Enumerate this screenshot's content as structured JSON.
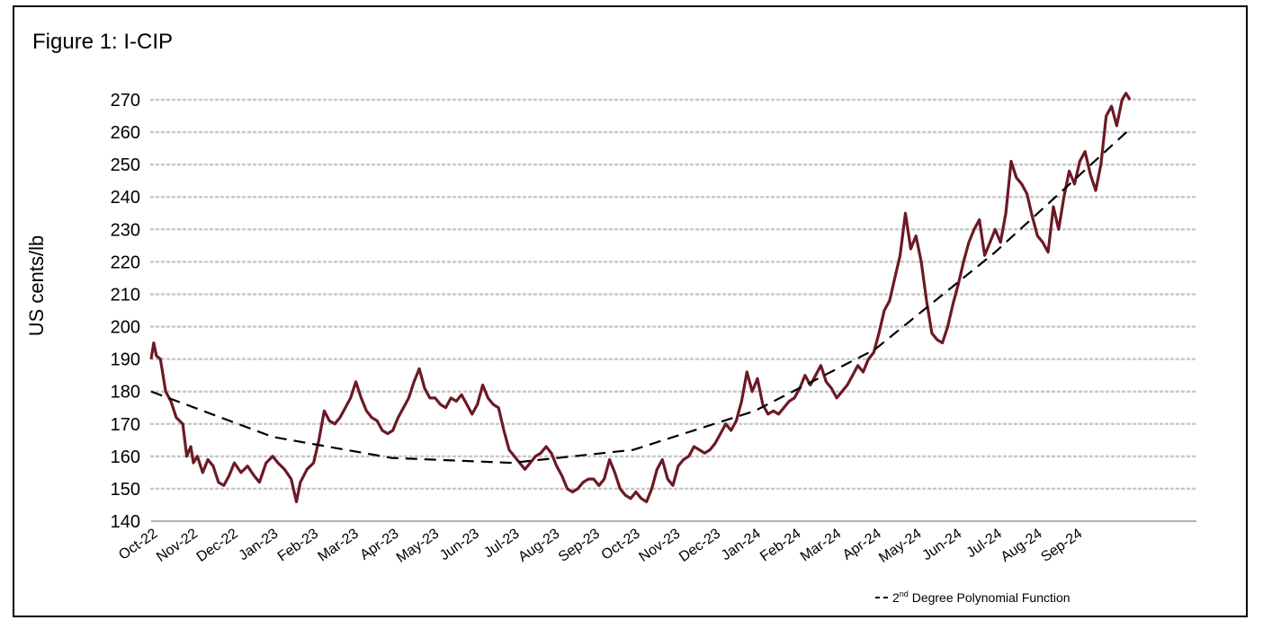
{
  "chart_data": {
    "type": "line",
    "title": "Figure 1: I-CIP",
    "xlabel": "",
    "ylabel": "US cents/lb",
    "ylim": [
      140,
      270
    ],
    "yticks": [
      140,
      150,
      160,
      170,
      180,
      190,
      200,
      210,
      220,
      230,
      240,
      250,
      260,
      270
    ],
    "grid": "horizontal dotted",
    "categories": [
      "Oct-22",
      "Nov-22",
      "Dec-22",
      "Jan-23",
      "Feb-23",
      "Mar-23",
      "Apr-23",
      "May-23",
      "Jun-23",
      "Jul-23",
      "Aug-23",
      "Sep-23",
      "Oct-23",
      "Nov-23",
      "Dec-23",
      "Jan-24",
      "Feb-24",
      "Mar-24",
      "Apr-24",
      "May-24",
      "Jun-24",
      "Jul-24",
      "Aug-24",
      "Sep-24"
    ],
    "series": [
      {
        "name": "",
        "color": "#6b1a25",
        "style": "solid",
        "points": [
          [
            "2022-10-01",
            190
          ],
          [
            "2022-10-03",
            195
          ],
          [
            "2022-10-05",
            191
          ],
          [
            "2022-10-08",
            190
          ],
          [
            "2022-10-12",
            180
          ],
          [
            "2022-10-16",
            177
          ],
          [
            "2022-10-20",
            172
          ],
          [
            "2022-10-25",
            170
          ],
          [
            "2022-10-28",
            160
          ],
          [
            "2022-10-31",
            163
          ],
          [
            "2022-11-02",
            158
          ],
          [
            "2022-11-05",
            160
          ],
          [
            "2022-11-09",
            155
          ],
          [
            "2022-11-13",
            159
          ],
          [
            "2022-11-17",
            157
          ],
          [
            "2022-11-21",
            152
          ],
          [
            "2022-11-25",
            151
          ],
          [
            "2022-11-29",
            154
          ],
          [
            "2022-12-03",
            158
          ],
          [
            "2022-12-08",
            155
          ],
          [
            "2022-12-13",
            157
          ],
          [
            "2022-12-18",
            154
          ],
          [
            "2022-12-22",
            152
          ],
          [
            "2022-12-27",
            158
          ],
          [
            "2023-01-01",
            160
          ],
          [
            "2023-01-05",
            158
          ],
          [
            "2023-01-10",
            156
          ],
          [
            "2023-01-15",
            153
          ],
          [
            "2023-01-19",
            146
          ],
          [
            "2023-01-22",
            152
          ],
          [
            "2023-01-27",
            156
          ],
          [
            "2023-02-01",
            158
          ],
          [
            "2023-02-05",
            165
          ],
          [
            "2023-02-09",
            174
          ],
          [
            "2023-02-13",
            171
          ],
          [
            "2023-02-17",
            170
          ],
          [
            "2023-02-21",
            172
          ],
          [
            "2023-02-25",
            175
          ],
          [
            "2023-03-01",
            178
          ],
          [
            "2023-03-05",
            183
          ],
          [
            "2023-03-09",
            178
          ],
          [
            "2023-03-13",
            174
          ],
          [
            "2023-03-17",
            172
          ],
          [
            "2023-03-21",
            171
          ],
          [
            "2023-03-25",
            168
          ],
          [
            "2023-03-29",
            167
          ],
          [
            "2023-04-02",
            168
          ],
          [
            "2023-04-06",
            172
          ],
          [
            "2023-04-10",
            175
          ],
          [
            "2023-04-14",
            178
          ],
          [
            "2023-04-18",
            183
          ],
          [
            "2023-04-22",
            187
          ],
          [
            "2023-04-26",
            181
          ],
          [
            "2023-04-30",
            178
          ],
          [
            "2023-05-04",
            178
          ],
          [
            "2023-05-08",
            176
          ],
          [
            "2023-05-12",
            175
          ],
          [
            "2023-05-16",
            178
          ],
          [
            "2023-05-20",
            177
          ],
          [
            "2023-05-24",
            179
          ],
          [
            "2023-05-28",
            176
          ],
          [
            "2023-06-01",
            173
          ],
          [
            "2023-06-05",
            176
          ],
          [
            "2023-06-09",
            182
          ],
          [
            "2023-06-13",
            178
          ],
          [
            "2023-06-17",
            176
          ],
          [
            "2023-06-21",
            175
          ],
          [
            "2023-06-25",
            168
          ],
          [
            "2023-06-29",
            162
          ],
          [
            "2023-07-03",
            160
          ],
          [
            "2023-07-07",
            158
          ],
          [
            "2023-07-11",
            156
          ],
          [
            "2023-07-15",
            158
          ],
          [
            "2023-07-19",
            160
          ],
          [
            "2023-07-23",
            161
          ],
          [
            "2023-07-27",
            163
          ],
          [
            "2023-07-31",
            161
          ],
          [
            "2023-08-04",
            157
          ],
          [
            "2023-08-08",
            154
          ],
          [
            "2023-08-12",
            150
          ],
          [
            "2023-08-16",
            149
          ],
          [
            "2023-08-20",
            150
          ],
          [
            "2023-08-24",
            152
          ],
          [
            "2023-08-28",
            153
          ],
          [
            "2023-09-01",
            153
          ],
          [
            "2023-09-05",
            151
          ],
          [
            "2023-09-09",
            153
          ],
          [
            "2023-09-13",
            159
          ],
          [
            "2023-09-17",
            155
          ],
          [
            "2023-09-21",
            150
          ],
          [
            "2023-09-25",
            148
          ],
          [
            "2023-09-29",
            147
          ],
          [
            "2023-10-03",
            149
          ],
          [
            "2023-10-07",
            147
          ],
          [
            "2023-10-11",
            146
          ],
          [
            "2023-10-15",
            150
          ],
          [
            "2023-10-19",
            156
          ],
          [
            "2023-10-23",
            159
          ],
          [
            "2023-10-27",
            153
          ],
          [
            "2023-10-31",
            151
          ],
          [
            "2023-11-04",
            157
          ],
          [
            "2023-11-08",
            159
          ],
          [
            "2023-11-12",
            160
          ],
          [
            "2023-11-16",
            163
          ],
          [
            "2023-11-20",
            162
          ],
          [
            "2023-11-24",
            161
          ],
          [
            "2023-11-28",
            162
          ],
          [
            "2023-12-02",
            164
          ],
          [
            "2023-12-06",
            167
          ],
          [
            "2023-12-10",
            170
          ],
          [
            "2023-12-14",
            168
          ],
          [
            "2023-12-18",
            171
          ],
          [
            "2023-12-22",
            177
          ],
          [
            "2023-12-26",
            186
          ],
          [
            "2023-12-30",
            180
          ],
          [
            "2024-01-03",
            184
          ],
          [
            "2024-01-07",
            176
          ],
          [
            "2024-01-11",
            173
          ],
          [
            "2024-01-15",
            174
          ],
          [
            "2024-01-19",
            173
          ],
          [
            "2024-01-23",
            175
          ],
          [
            "2024-01-27",
            177
          ],
          [
            "2024-01-31",
            178
          ],
          [
            "2024-02-04",
            181
          ],
          [
            "2024-02-08",
            185
          ],
          [
            "2024-02-12",
            182
          ],
          [
            "2024-02-16",
            185
          ],
          [
            "2024-02-20",
            188
          ],
          [
            "2024-02-24",
            183
          ],
          [
            "2024-02-28",
            181
          ],
          [
            "2024-03-03",
            178
          ],
          [
            "2024-03-07",
            180
          ],
          [
            "2024-03-11",
            182
          ],
          [
            "2024-03-15",
            185
          ],
          [
            "2024-03-19",
            188
          ],
          [
            "2024-03-23",
            186
          ],
          [
            "2024-03-27",
            190
          ],
          [
            "2024-03-31",
            192
          ],
          [
            "2024-04-04",
            198
          ],
          [
            "2024-04-08",
            205
          ],
          [
            "2024-04-12",
            208
          ],
          [
            "2024-04-16",
            215
          ],
          [
            "2024-04-20",
            222
          ],
          [
            "2024-04-24",
            235
          ],
          [
            "2024-04-28",
            224
          ],
          [
            "2024-05-02",
            228
          ],
          [
            "2024-05-06",
            220
          ],
          [
            "2024-05-10",
            208
          ],
          [
            "2024-05-14",
            198
          ],
          [
            "2024-05-18",
            196
          ],
          [
            "2024-05-22",
            195
          ],
          [
            "2024-05-26",
            200
          ],
          [
            "2024-05-30",
            207
          ],
          [
            "2024-06-03",
            213
          ],
          [
            "2024-06-07",
            220
          ],
          [
            "2024-06-11",
            226
          ],
          [
            "2024-06-15",
            230
          ],
          [
            "2024-06-19",
            233
          ],
          [
            "2024-06-23",
            222
          ],
          [
            "2024-06-27",
            226
          ],
          [
            "2024-07-01",
            230
          ],
          [
            "2024-07-05",
            226
          ],
          [
            "2024-07-09",
            235
          ],
          [
            "2024-07-13",
            251
          ],
          [
            "2024-07-17",
            246
          ],
          [
            "2024-07-21",
            244
          ],
          [
            "2024-07-25",
            241
          ],
          [
            "2024-07-29",
            234
          ],
          [
            "2024-08-02",
            228
          ],
          [
            "2024-08-06",
            226
          ],
          [
            "2024-08-10",
            223
          ],
          [
            "2024-08-14",
            237
          ],
          [
            "2024-08-18",
            230
          ],
          [
            "2024-08-22",
            240
          ],
          [
            "2024-08-26",
            248
          ],
          [
            "2024-08-30",
            244
          ],
          [
            "2024-09-03",
            251
          ],
          [
            "2024-09-07",
            254
          ],
          [
            "2024-09-11",
            247
          ],
          [
            "2024-09-15",
            242
          ],
          [
            "2024-09-19",
            250
          ],
          [
            "2024-09-23",
            265
          ],
          [
            "2024-09-27",
            268
          ],
          [
            "2024-10-01",
            262
          ],
          [
            "2024-10-05",
            270
          ],
          [
            "2024-10-08",
            272
          ],
          [
            "2024-10-11",
            270
          ]
        ]
      },
      {
        "name": "2nd Degree Polynomial Function",
        "color": "#000000",
        "style": "dashed",
        "points": [
          [
            "2022-10-01",
            180
          ],
          [
            "2023-01-01",
            166
          ],
          [
            "2023-04-01",
            159.5
          ],
          [
            "2023-07-01",
            158
          ],
          [
            "2023-10-01",
            162
          ],
          [
            "2024-01-01",
            174
          ],
          [
            "2024-04-01",
            193
          ],
          [
            "2024-07-01",
            223
          ],
          [
            "2024-10-11",
            261
          ]
        ]
      }
    ],
    "legend": {
      "position": "bottom-right",
      "label": "2",
      "label_sup": "nd",
      "label_rest": " Degree Polynomial Function"
    }
  }
}
